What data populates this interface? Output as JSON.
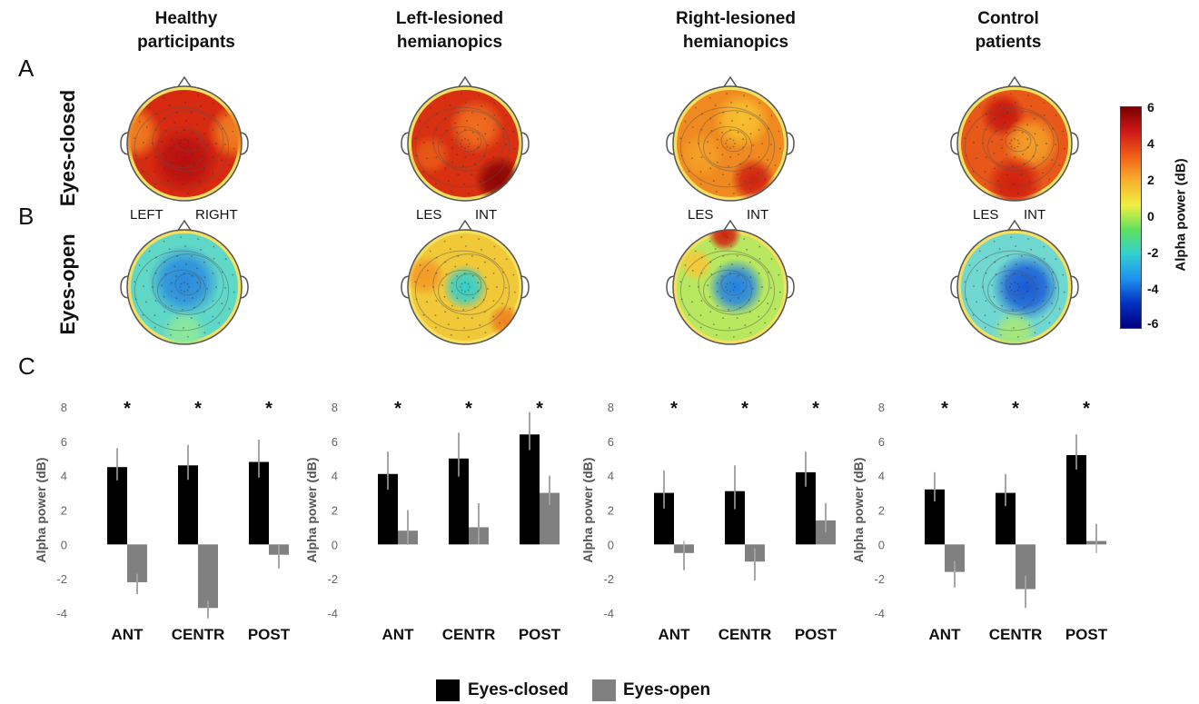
{
  "panel_labels": {
    "a": "A",
    "b": "B",
    "c": "C"
  },
  "group_titles": [
    [
      "Healthy",
      "participants"
    ],
    [
      "Left-lesioned",
      "hemianopics"
    ],
    [
      "Right-lesioned",
      "hemianopics"
    ],
    [
      "Control",
      "patients"
    ]
  ],
  "row_labels": {
    "closed": "Eyes-closed",
    "open": "Eyes-open"
  },
  "side_labels": [
    {
      "left": "LEFT",
      "right": "RIGHT"
    },
    {
      "left": "LES",
      "right": "INT"
    },
    {
      "left": "LES",
      "right": "INT"
    },
    {
      "left": "LES",
      "right": "INT"
    }
  ],
  "colorbar": {
    "title": "Alpha power (dB)",
    "ticks": [
      "6",
      "4",
      "2",
      "0",
      "-2",
      "-4",
      "-6"
    ],
    "colors": [
      "#7a0000",
      "#d01818",
      "#f06018",
      "#f8b030",
      "#f0f040",
      "#60e060",
      "#30d0d0",
      "#2090f0",
      "#0030c0",
      "#000080"
    ]
  },
  "colors": {
    "eyes_closed": "#000000",
    "eyes_open": "#808080"
  },
  "chart_data": [
    {
      "type": "bar",
      "categories": [
        "ANT",
        "CENTR",
        "POST"
      ],
      "ylabel": "Alpha power (dB)",
      "ylim": [
        -4,
        8
      ],
      "yticks": [
        "8",
        "6",
        "4",
        "2",
        "0",
        "-2",
        "-4"
      ],
      "series": [
        {
          "name": "Eyes-closed",
          "values": [
            4.5,
            4.6,
            4.8
          ],
          "errors": [
            1.1,
            1.2,
            1.3
          ]
        },
        {
          "name": "Eyes-open",
          "values": [
            -2.2,
            -3.7,
            -0.6
          ],
          "errors": [
            0.7,
            0.6,
            0.8
          ]
        }
      ],
      "significance": [
        "*",
        "*",
        "*"
      ]
    },
    {
      "type": "bar",
      "categories": [
        "ANT",
        "CENTR",
        "POST"
      ],
      "ylabel": "Alpha power (dB)",
      "ylim": [
        -4,
        8
      ],
      "yticks": [
        "8",
        "6",
        "4",
        "2",
        "0",
        "-2",
        "-4"
      ],
      "series": [
        {
          "name": "Eyes-closed",
          "values": [
            4.1,
            5.0,
            6.4
          ],
          "errors": [
            1.3,
            1.5,
            1.3
          ]
        },
        {
          "name": "Eyes-open",
          "values": [
            0.8,
            1.0,
            3.0
          ],
          "errors": [
            1.2,
            1.4,
            1.0
          ]
        }
      ],
      "significance": [
        "*",
        "*",
        "*"
      ]
    },
    {
      "type": "bar",
      "categories": [
        "ANT",
        "CENTR",
        "POST"
      ],
      "ylabel": "Alpha power (dB)",
      "ylim": [
        -4,
        8
      ],
      "yticks": [
        "8",
        "6",
        "4",
        "2",
        "0",
        "-2",
        "-4"
      ],
      "series": [
        {
          "name": "Eyes-closed",
          "values": [
            3.0,
            3.1,
            4.2
          ],
          "errors": [
            1.3,
            1.5,
            1.2
          ]
        },
        {
          "name": "Eyes-open",
          "values": [
            -0.5,
            -1.0,
            1.4
          ],
          "errors": [
            1.0,
            1.1,
            1.0
          ]
        }
      ],
      "significance": [
        "*",
        "*",
        "*"
      ]
    },
    {
      "type": "bar",
      "categories": [
        "ANT",
        "CENTR",
        "POST"
      ],
      "ylabel": "Alpha power (dB)",
      "ylim": [
        -4,
        8
      ],
      "yticks": [
        "8",
        "6",
        "4",
        "2",
        "0",
        "-2",
        "-4"
      ],
      "series": [
        {
          "name": "Eyes-closed",
          "values": [
            3.2,
            3.0,
            5.2
          ],
          "errors": [
            1.0,
            1.1,
            1.2
          ]
        },
        {
          "name": "Eyes-open",
          "values": [
            -1.6,
            -2.6,
            0.2
          ],
          "errors": [
            0.9,
            1.1,
            1.0
          ]
        }
      ],
      "significance": [
        "*",
        "*",
        "*"
      ]
    }
  ],
  "legend": [
    {
      "label": "Eyes-closed",
      "color": "#000000"
    },
    {
      "label": "Eyes-open",
      "color": "#808080"
    }
  ],
  "topomaps": {
    "closed": [
      {
        "base": "#d82a10",
        "blobs": [
          [
            "#f08020",
            0.05,
            0.4,
            0.25
          ],
          [
            "#f08020",
            0.95,
            0.4,
            0.25
          ],
          [
            "#b81010",
            0.5,
            0.65,
            0.3
          ]
        ]
      },
      {
        "base": "#d83010",
        "blobs": [
          [
            "#f07020",
            0.6,
            0.35,
            0.25
          ],
          [
            "#8a0505",
            0.8,
            0.82,
            0.22
          ],
          [
            "#e85a18",
            0.2,
            0.6,
            0.18
          ]
        ]
      },
      {
        "base": "#f08a20",
        "blobs": [
          [
            "#f8c030",
            0.6,
            0.3,
            0.25
          ],
          [
            "#d02010",
            0.7,
            0.82,
            0.2
          ],
          [
            "#f4a028",
            0.25,
            0.6,
            0.2
          ]
        ]
      },
      {
        "base": "#e85818",
        "blobs": [
          [
            "#c81810",
            0.4,
            0.25,
            0.2
          ],
          [
            "#f4a028",
            0.65,
            0.5,
            0.25
          ],
          [
            "#d02010",
            0.5,
            0.85,
            0.25
          ]
        ]
      }
    ],
    "open": [
      {
        "base": "#60d8c8",
        "blobs": [
          [
            "#2a8ae0",
            0.5,
            0.45,
            0.32
          ],
          [
            "#8ee89a",
            0.5,
            0.9,
            0.2
          ]
        ]
      },
      {
        "base": "#f0c838",
        "blobs": [
          [
            "#30d0d0",
            0.5,
            0.5,
            0.2
          ],
          [
            "#f49a28",
            0.15,
            0.4,
            0.18
          ],
          [
            "#f08020",
            0.85,
            0.8,
            0.15
          ]
        ]
      },
      {
        "base": "#b8e860",
        "blobs": [
          [
            "#2080e8",
            0.55,
            0.5,
            0.25
          ],
          [
            "#d02010",
            0.45,
            0.04,
            0.15
          ],
          [
            "#f8c838",
            0.2,
            0.3,
            0.15
          ]
        ]
      },
      {
        "base": "#70d8d0",
        "blobs": [
          [
            "#1858d8",
            0.6,
            0.5,
            0.3
          ],
          [
            "#a8e878",
            0.5,
            0.9,
            0.2
          ]
        ]
      }
    ]
  }
}
